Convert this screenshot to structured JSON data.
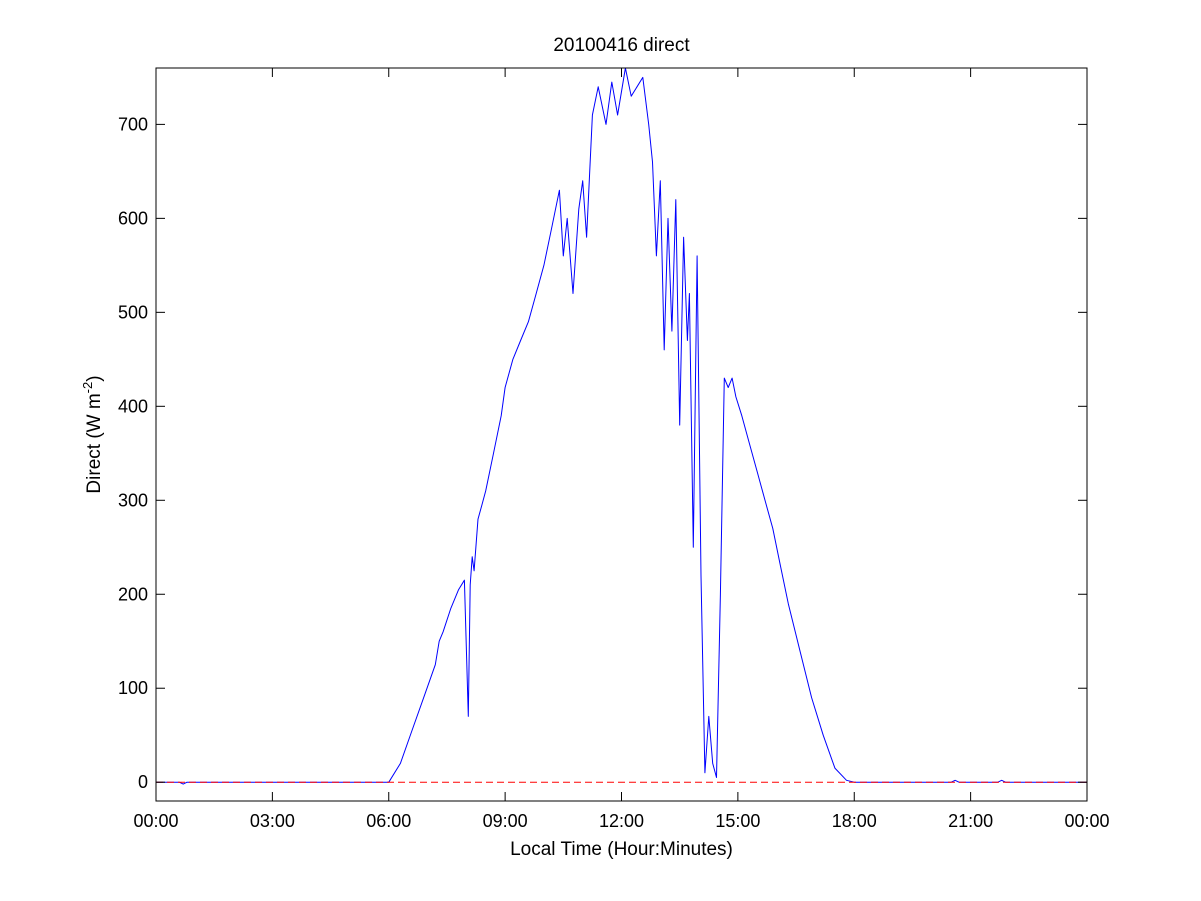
{
  "chart_data": {
    "type": "line",
    "title": "20100416 direct",
    "xlabel": "Local Time (Hour:Minutes)",
    "ylabel_main": "Direct (W m",
    "ylabel_sup": "-2",
    "ylabel_tail": ")",
    "xlim": [
      0,
      24
    ],
    "ylim": [
      -20,
      760
    ],
    "x_ticks": [
      0,
      3,
      6,
      9,
      12,
      15,
      18,
      21,
      24
    ],
    "x_tick_labels": [
      "00:00",
      "03:00",
      "06:00",
      "09:00",
      "12:00",
      "15:00",
      "18:00",
      "21:00",
      "00:00"
    ],
    "y_ticks": [
      0,
      100,
      200,
      300,
      400,
      500,
      600,
      700
    ],
    "y_tick_labels": [
      "0",
      "100",
      "200",
      "300",
      "400",
      "500",
      "600",
      "700"
    ],
    "grid": false,
    "colors": {
      "series": "#0000ff",
      "baseline": "#ff0000"
    },
    "series": [
      {
        "style": "solid",
        "color": "#0000ff",
        "x": [
          0,
          0.6,
          0.7,
          0.8,
          6.0,
          6.3,
          6.6,
          6.9,
          7.2,
          7.3,
          7.4,
          7.6,
          7.8,
          7.95,
          8.05,
          8.1,
          8.15,
          8.2,
          8.3,
          8.4,
          8.5,
          8.7,
          8.9,
          9.0,
          9.2,
          9.4,
          9.6,
          9.8,
          10.0,
          10.2,
          10.4,
          10.5,
          10.6,
          10.75,
          10.9,
          11.0,
          11.1,
          11.25,
          11.4,
          11.5,
          11.6,
          11.75,
          11.9,
          12.1,
          12.25,
          12.4,
          12.55,
          12.7,
          12.8,
          12.9,
          13.0,
          13.1,
          13.2,
          13.3,
          13.4,
          13.5,
          13.6,
          13.7,
          13.75,
          13.85,
          13.95,
          14.05,
          14.15,
          14.25,
          14.35,
          14.45,
          14.55,
          14.65,
          14.75,
          14.85,
          14.95,
          15.1,
          15.3,
          15.5,
          15.7,
          15.9,
          16.1,
          16.3,
          16.6,
          16.9,
          17.2,
          17.5,
          17.8,
          18.0,
          18.2,
          20.5,
          20.6,
          20.7,
          21.7,
          21.8,
          21.9,
          24
        ],
        "y": [
          0,
          0,
          -2,
          0,
          0,
          20,
          55,
          90,
          125,
          150,
          160,
          185,
          205,
          215,
          70,
          210,
          240,
          225,
          280,
          295,
          310,
          350,
          390,
          420,
          450,
          470,
          490,
          520,
          550,
          590,
          630,
          560,
          600,
          520,
          610,
          640,
          580,
          710,
          740,
          720,
          700,
          745,
          710,
          760,
          730,
          740,
          750,
          700,
          660,
          560,
          640,
          460,
          600,
          480,
          620,
          380,
          580,
          470,
          520,
          250,
          560,
          220,
          10,
          70,
          20,
          5,
          200,
          430,
          420,
          430,
          410,
          390,
          360,
          330,
          300,
          270,
          230,
          190,
          140,
          90,
          50,
          15,
          2,
          0,
          0,
          0,
          2,
          0,
          0,
          2,
          0,
          0
        ]
      },
      {
        "style": "dashed",
        "color": "#ff0000",
        "x": [
          0,
          24
        ],
        "y": [
          0,
          0
        ]
      }
    ]
  }
}
